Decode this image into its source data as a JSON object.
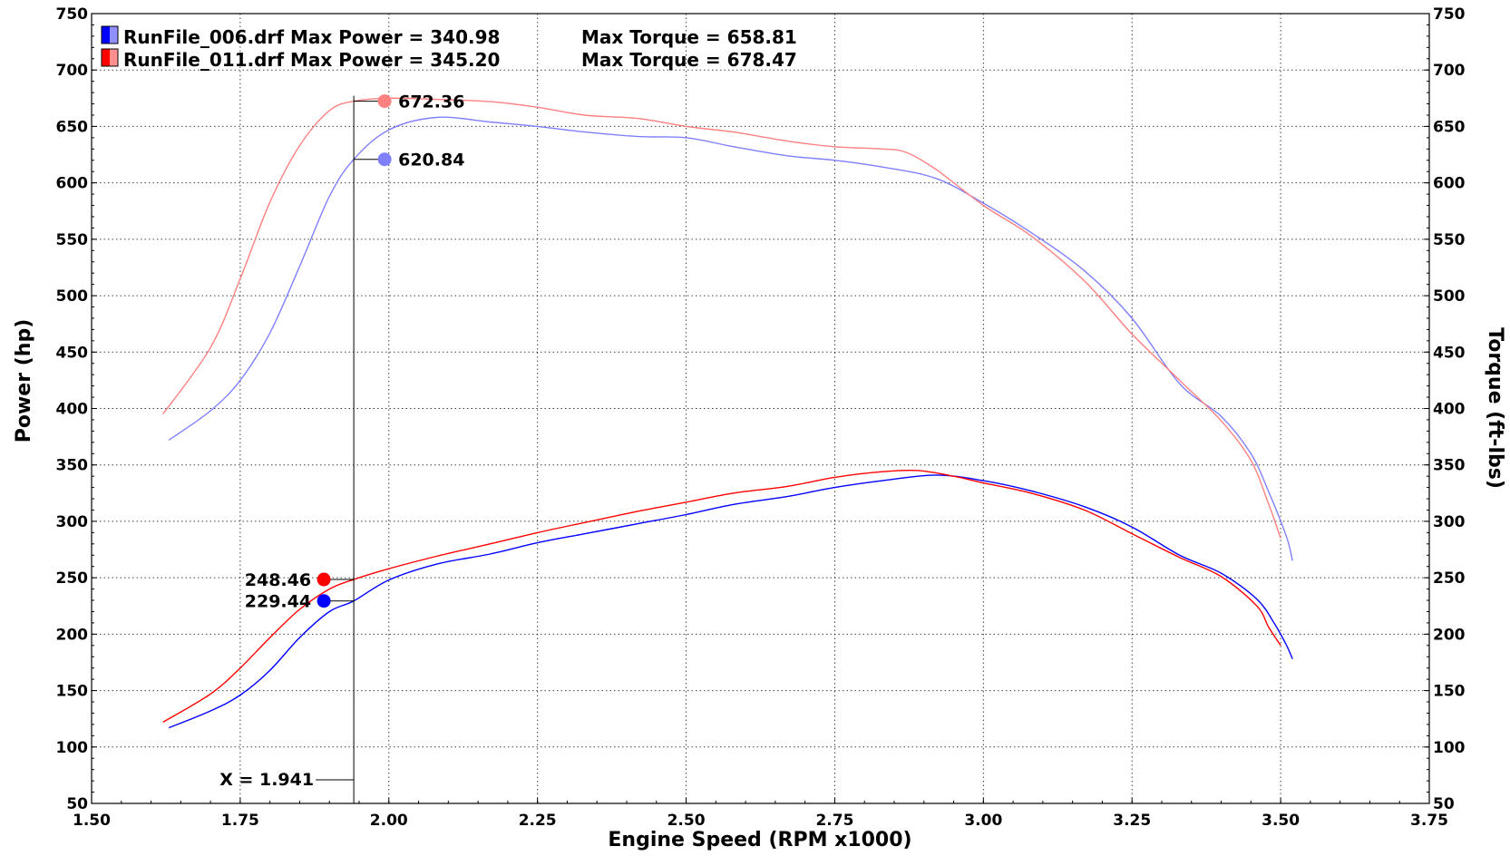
{
  "chart_data": {
    "type": "line",
    "x_label": "Engine Speed (RPM x1000)",
    "y_left_label": "Power (hp)",
    "y_right_label": "Torque (ft-lbs)",
    "xlim": [
      1.5,
      3.75
    ],
    "ylim": [
      50,
      750
    ],
    "x_ticks": [
      "1.50",
      "1.75",
      "2.00",
      "2.25",
      "2.50",
      "2.75",
      "3.00",
      "3.25",
      "3.50",
      "3.75"
    ],
    "y_ticks": [
      "50",
      "100",
      "150",
      "200",
      "250",
      "300",
      "350",
      "400",
      "450",
      "500",
      "550",
      "600",
      "650",
      "700",
      "750"
    ],
    "grid": true,
    "legend": [
      {
        "file": "RunFile_006.drf",
        "max_power_text": "Max Power = 340.98",
        "max_torque_text": "Max Torque = 658.81",
        "color": "#0000ff"
      },
      {
        "file": "RunFile_011.drf",
        "max_power_text": "Max Power = 345.20",
        "max_torque_text": "Max Torque = 678.47",
        "color": "#ff0000"
      }
    ],
    "cursor": {
      "x": 1.941,
      "label": "X = 1.941",
      "values": [
        {
          "value": 672.36,
          "text": "672.36",
          "color": "#ff8080",
          "kind": "torque"
        },
        {
          "value": 620.84,
          "text": "620.84",
          "color": "#8080ff",
          "kind": "torque"
        },
        {
          "value": 248.46,
          "text": "248.46",
          "color": "#ff0000",
          "kind": "power"
        },
        {
          "value": 229.44,
          "text": "229.44",
          "color": "#0000ff",
          "kind": "power"
        }
      ]
    },
    "series": [
      {
        "name": "RunFile_006.drf Power",
        "color": "#0000ff",
        "x": [
          1.63,
          1.7,
          1.75,
          1.8,
          1.85,
          1.9,
          1.941,
          2.0,
          2.08,
          2.17,
          2.25,
          2.33,
          2.42,
          2.5,
          2.58,
          2.67,
          2.75,
          2.83,
          2.92,
          3.0,
          3.08,
          3.17,
          3.25,
          3.33,
          3.4,
          3.46,
          3.49,
          3.51,
          3.52
        ],
        "values": [
          117,
          132,
          146,
          168,
          197,
          220,
          229.44,
          248,
          262,
          271,
          281,
          289,
          298,
          306,
          315,
          322,
          330,
          336,
          341,
          336,
          327,
          313,
          295,
          270,
          254,
          231,
          209,
          190,
          178
        ]
      },
      {
        "name": "RunFile_011.drf Power",
        "color": "#ff0000",
        "x": [
          1.62,
          1.7,
          1.75,
          1.8,
          1.85,
          1.9,
          1.941,
          2.0,
          2.08,
          2.17,
          2.25,
          2.33,
          2.42,
          2.5,
          2.58,
          2.67,
          2.75,
          2.83,
          2.89,
          2.95,
          3.0,
          3.08,
          3.17,
          3.25,
          3.33,
          3.4,
          3.46,
          3.48,
          3.5
        ],
        "values": [
          122,
          147,
          170,
          197,
          222,
          240,
          248.46,
          258,
          269,
          280,
          290,
          299,
          309,
          317,
          325,
          331,
          339,
          344,
          345,
          340,
          334,
          325,
          310,
          289,
          268,
          251,
          225,
          206,
          190
        ]
      },
      {
        "name": "RunFile_006.drf Torque",
        "color": "#8080ff",
        "x": [
          1.63,
          1.7,
          1.75,
          1.8,
          1.85,
          1.9,
          1.941,
          2.0,
          2.08,
          2.17,
          2.25,
          2.33,
          2.42,
          2.5,
          2.58,
          2.67,
          2.75,
          2.83,
          2.92,
          3.0,
          3.08,
          3.17,
          3.25,
          3.33,
          3.4,
          3.45,
          3.48,
          3.51,
          3.52
        ],
        "values": [
          372,
          398,
          425,
          467,
          526,
          588,
          620.84,
          647,
          658,
          654,
          650,
          645,
          641,
          640,
          632,
          624,
          620,
          614,
          604,
          582,
          556,
          522,
          480,
          422,
          393,
          360,
          326,
          286,
          265
        ]
      },
      {
        "name": "RunFile_011.drf Torque",
        "color": "#ff8080",
        "x": [
          1.62,
          1.7,
          1.75,
          1.8,
          1.85,
          1.9,
          1.941,
          2.0,
          2.08,
          2.17,
          2.25,
          2.33,
          2.42,
          2.5,
          2.58,
          2.67,
          2.75,
          2.83,
          2.87,
          2.92,
          3.0,
          3.08,
          3.17,
          3.25,
          3.33,
          3.4,
          3.45,
          3.48,
          3.5
        ],
        "values": [
          395,
          454,
          515,
          583,
          633,
          664,
          672.36,
          675,
          674,
          672,
          667,
          660,
          657,
          650,
          645,
          637,
          632,
          630,
          627,
          612,
          580,
          553,
          513,
          466,
          425,
          389,
          354,
          315,
          285
        ]
      }
    ]
  }
}
